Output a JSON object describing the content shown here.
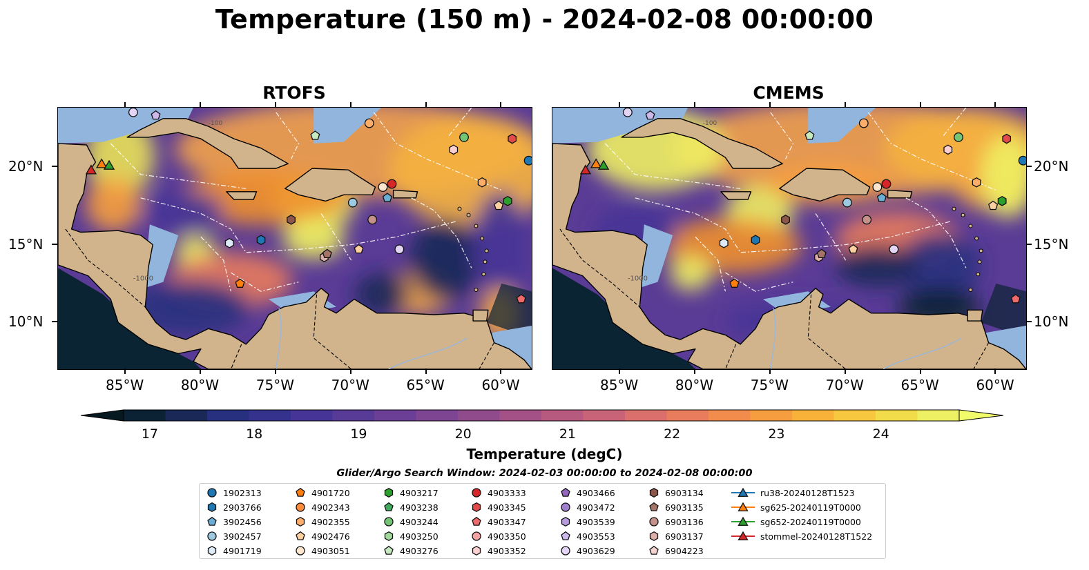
{
  "title": "Temperature (150 m) - 2024-02-08 00:00:00",
  "panels": [
    {
      "title": "RTOFS"
    },
    {
      "title": "CMEMS"
    }
  ],
  "lon_ticks": [
    "85°W",
    "80°W",
    "75°W",
    "70°W",
    "65°W",
    "60°W"
  ],
  "lat_ticks": [
    "20°N",
    "15°N",
    "10°N"
  ],
  "colorbar": {
    "label": "Temperature (degC)",
    "ticks": [
      "17",
      "18",
      "19",
      "20",
      "21",
      "22",
      "23",
      "24"
    ],
    "colors": [
      "#0a2233",
      "#1a2858",
      "#27307e",
      "#35328e",
      "#463596",
      "#583a97",
      "#6b3f96",
      "#7d4592",
      "#904b8d",
      "#a45187",
      "#b75a80",
      "#c96378",
      "#db6f6c",
      "#e87c5d",
      "#f28c4c",
      "#f69e3f",
      "#f8b23a",
      "#f7c73f",
      "#f3dc4a",
      "#eef063"
    ]
  },
  "map_colors": {
    "land": "#d2b48c",
    "shelf": "#92b5de",
    "deep": "#0b2433"
  },
  "contour_labels": [
    "-100",
    "-1000"
  ],
  "legend": {
    "title": "Glider/Argo Search Window: 2024-02-03 00:00:00 to 2024-02-08 00:00:00",
    "columns": [
      [
        {
          "label": "1902313",
          "marker": "circle",
          "color": "#1f77b4"
        },
        {
          "label": "2903766",
          "marker": "hexagon",
          "color": "#1f77b4"
        },
        {
          "label": "3902456",
          "marker": "pentagon",
          "color": "#6baed6"
        },
        {
          "label": "3902457",
          "marker": "circle",
          "color": "#9ecae1"
        },
        {
          "label": "4901719",
          "marker": "hexagon",
          "color": "#deebf7"
        }
      ],
      [
        {
          "label": "4901720",
          "marker": "pentagon",
          "color": "#ff7f0e"
        },
        {
          "label": "4902343",
          "marker": "circle",
          "color": "#fd8d3c"
        },
        {
          "label": "4902355",
          "marker": "hexagon",
          "color": "#fdae6b"
        },
        {
          "label": "4902476",
          "marker": "pentagon",
          "color": "#fdd0a2"
        },
        {
          "label": "4903051",
          "marker": "circle",
          "color": "#fee6ce"
        }
      ],
      [
        {
          "label": "4903217",
          "marker": "hexagon",
          "color": "#2ca02c"
        },
        {
          "label": "4903238",
          "marker": "pentagon",
          "color": "#41ab5d"
        },
        {
          "label": "4903244",
          "marker": "circle",
          "color": "#74c476"
        },
        {
          "label": "4903250",
          "marker": "hexagon",
          "color": "#a1d99b"
        },
        {
          "label": "4903276",
          "marker": "pentagon",
          "color": "#c7e9c0"
        }
      ],
      [
        {
          "label": "4903333",
          "marker": "circle",
          "color": "#d62728"
        },
        {
          "label": "4903345",
          "marker": "hexagon",
          "color": "#e34a4a"
        },
        {
          "label": "4903347",
          "marker": "pentagon",
          "color": "#ef6a6a"
        },
        {
          "label": "4903350",
          "marker": "circle",
          "color": "#f4a3a3"
        },
        {
          "label": "4903352",
          "marker": "hexagon",
          "color": "#fcd0d0"
        }
      ],
      [
        {
          "label": "4903466",
          "marker": "pentagon",
          "color": "#9467bd"
        },
        {
          "label": "4903472",
          "marker": "circle",
          "color": "#a17fd0"
        },
        {
          "label": "4903539",
          "marker": "hexagon",
          "color": "#b79ae0"
        },
        {
          "label": "4903553",
          "marker": "pentagon",
          "color": "#cdb8ec"
        },
        {
          "label": "4903629",
          "marker": "circle",
          "color": "#e4d4f6"
        }
      ],
      [
        {
          "label": "6903134",
          "marker": "hexagon",
          "color": "#8c564b"
        },
        {
          "label": "6903135",
          "marker": "pentagon",
          "color": "#a4736a"
        },
        {
          "label": "6903136",
          "marker": "circle",
          "color": "#c4928a"
        },
        {
          "label": "6903137",
          "marker": "hexagon",
          "color": "#dcb0a8"
        },
        {
          "label": "6904223",
          "marker": "pentagon",
          "color": "#f5d3cf"
        }
      ],
      [
        {
          "label": "ru38-20240128T1523",
          "marker": "triangle-line",
          "color": "#1f77b4"
        },
        {
          "label": "sg625-20240119T0000",
          "marker": "triangle-line",
          "color": "#ff7f0e"
        },
        {
          "label": "sg652-20240119T0000",
          "marker": "triangle-line",
          "color": "#2ca02c"
        },
        {
          "label": "stommel-20240128T1522",
          "marker": "triangle-line",
          "color": "#d62728"
        }
      ]
    ]
  },
  "markers": [
    {
      "lon": -84.5,
      "lat": 23.5,
      "marker": "circle",
      "color": "#e4d4f6"
    },
    {
      "lon": -83.0,
      "lat": 23.3,
      "marker": "pentagon",
      "color": "#cdb8ec"
    },
    {
      "lon": -72.4,
      "lat": 22.0,
      "marker": "pentagon",
      "color": "#c7e9c0"
    },
    {
      "lon": -68.8,
      "lat": 22.8,
      "marker": "circle",
      "color": "#fdae6b"
    },
    {
      "lon": -62.5,
      "lat": 21.9,
      "marker": "circle",
      "color": "#74c476"
    },
    {
      "lon": -63.2,
      "lat": 21.1,
      "marker": "hexagon",
      "color": "#fcd0d0"
    },
    {
      "lon": -59.3,
      "lat": 21.8,
      "marker": "hexagon",
      "color": "#e34a4a"
    },
    {
      "lon": -58.2,
      "lat": 20.4,
      "marker": "circle",
      "color": "#1f77b4"
    },
    {
      "lon": -61.3,
      "lat": 19.0,
      "marker": "hexagon",
      "color": "#fdae6b"
    },
    {
      "lon": -67.9,
      "lat": 18.7,
      "marker": "circle",
      "color": "#fee6ce"
    },
    {
      "lon": -67.3,
      "lat": 18.9,
      "marker": "circle",
      "color": "#d62728"
    },
    {
      "lon": -67.6,
      "lat": 18.0,
      "marker": "pentagon",
      "color": "#6baed6"
    },
    {
      "lon": -69.9,
      "lat": 17.7,
      "marker": "circle",
      "color": "#9ecae1"
    },
    {
      "lon": -60.2,
      "lat": 17.5,
      "marker": "pentagon",
      "color": "#fdd0a2"
    },
    {
      "lon": -59.6,
      "lat": 17.8,
      "marker": "hexagon",
      "color": "#2ca02c"
    },
    {
      "lon": -74.0,
      "lat": 16.6,
      "marker": "hexagon",
      "color": "#8c564b"
    },
    {
      "lon": -68.6,
      "lat": 16.6,
      "marker": "circle",
      "color": "#c4928a"
    },
    {
      "lon": -76.0,
      "lat": 15.3,
      "marker": "hexagon",
      "color": "#1f77b4"
    },
    {
      "lon": -78.1,
      "lat": 15.1,
      "marker": "hexagon",
      "color": "#deebf7"
    },
    {
      "lon": -69.5,
      "lat": 14.7,
      "marker": "pentagon",
      "color": "#fdd0a2"
    },
    {
      "lon": -66.8,
      "lat": 14.7,
      "marker": "circle",
      "color": "#e4d4f6"
    },
    {
      "lon": -71.8,
      "lat": 14.2,
      "marker": "hexagon",
      "color": "#dcb0a8"
    },
    {
      "lon": -71.6,
      "lat": 14.4,
      "marker": "pentagon",
      "color": "#a4736a"
    },
    {
      "lon": -77.4,
      "lat": 12.5,
      "marker": "pentagon",
      "color": "#ff7f0e"
    },
    {
      "lon": -58.7,
      "lat": 11.5,
      "marker": "pentagon",
      "color": "#ef6a6a"
    },
    {
      "lon": -86.6,
      "lat": 20.2,
      "marker": "triangle",
      "color": "#ff7f0e"
    },
    {
      "lon": -86.1,
      "lat": 20.1,
      "marker": "triangle",
      "color": "#2ca02c"
    },
    {
      "lon": -87.3,
      "lat": 19.8,
      "marker": "triangle",
      "color": "#d62728"
    }
  ]
}
